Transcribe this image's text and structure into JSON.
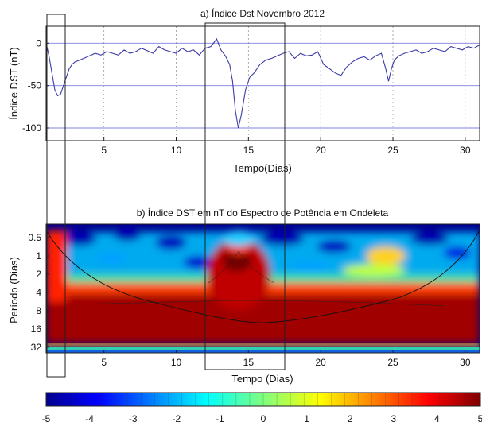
{
  "chart_data": [
    {
      "type": "line",
      "title": "a) Índice Dst Novembro 2012",
      "xlabel": "Tempo(Dias)",
      "ylabel": "Índice DST (nT)",
      "xlim": [
        1,
        31
      ],
      "ylim": [
        -115,
        20
      ],
      "xticks": [
        5,
        10,
        15,
        20,
        25,
        30
      ],
      "yticks": [
        0,
        -50,
        -100
      ],
      "hlines": [
        0,
        -50,
        -100
      ],
      "grid": "vertical dotted",
      "color": "#3a3aa8",
      "series": [
        {
          "x": [
            1.0,
            1.2,
            1.4,
            1.6,
            1.8,
            2.0,
            2.2,
            2.4,
            2.6,
            2.8,
            3.0,
            3.3,
            3.6,
            4.0,
            4.4,
            4.8,
            5.2,
            5.6,
            6.0,
            6.4,
            6.8,
            7.2,
            7.6,
            8.0,
            8.4,
            8.8,
            9.2,
            9.6,
            10.0,
            10.4,
            10.8,
            11.2,
            11.6,
            12.0,
            12.4,
            12.8,
            13.1,
            13.4,
            13.7,
            13.9,
            14.1,
            14.3,
            14.5,
            14.8,
            15.1,
            15.4,
            15.8,
            16.2,
            16.6,
            17.0,
            17.4,
            17.8,
            18.2,
            18.6,
            19.0,
            19.4,
            19.8,
            20.2,
            20.6,
            21.0,
            21.4,
            21.8,
            22.2,
            22.6,
            23.0,
            23.4,
            23.8,
            24.2,
            24.5,
            24.7,
            24.9,
            25.1,
            25.4,
            25.8,
            26.2,
            26.6,
            27.0,
            27.4,
            27.8,
            28.2,
            28.6,
            29.0,
            29.4,
            29.8,
            30.2,
            30.6,
            31.0
          ],
          "y": [
            0,
            -15,
            -35,
            -55,
            -62,
            -60,
            -50,
            -40,
            -30,
            -25,
            -22,
            -20,
            -18,
            -15,
            -12,
            -14,
            -10,
            -12,
            -14,
            -8,
            -12,
            -10,
            -6,
            -9,
            -12,
            -4,
            -8,
            -10,
            -12,
            -6,
            -10,
            -8,
            -14,
            -6,
            -4,
            5,
            -8,
            -15,
            -25,
            -45,
            -80,
            -100,
            -85,
            -55,
            -40,
            -35,
            -25,
            -20,
            -18,
            -15,
            -12,
            -10,
            -18,
            -12,
            -15,
            -14,
            -10,
            -25,
            -30,
            -35,
            -38,
            -28,
            -22,
            -18,
            -16,
            -20,
            -15,
            -12,
            -30,
            -45,
            -30,
            -20,
            -15,
            -12,
            -10,
            -8,
            -12,
            -10,
            -6,
            -8,
            -10,
            -4,
            -6,
            -8,
            -4,
            -6,
            -2
          ]
        }
      ]
    },
    {
      "type": "heatmap",
      "title": "b) Índice DST em nT do Espectro de Potência em Ondeleta",
      "xlabel": "Tempo (Dias)",
      "ylabel": "Período (Dias)",
      "xlim": [
        1,
        31
      ],
      "xticks": [
        5,
        10,
        15,
        20,
        25,
        30
      ],
      "yticks": [
        "0.5",
        "1",
        "2",
        "4",
        "8",
        "16",
        "32"
      ],
      "yscale": "log2",
      "colorbar": {
        "min": -5,
        "max": 5,
        "ticks": [
          -5,
          -4,
          -3,
          -2,
          -1,
          0,
          1,
          2,
          3,
          4,
          5
        ],
        "colormap": "jet"
      },
      "cone_of_influence": true,
      "grid": false
    }
  ]
}
